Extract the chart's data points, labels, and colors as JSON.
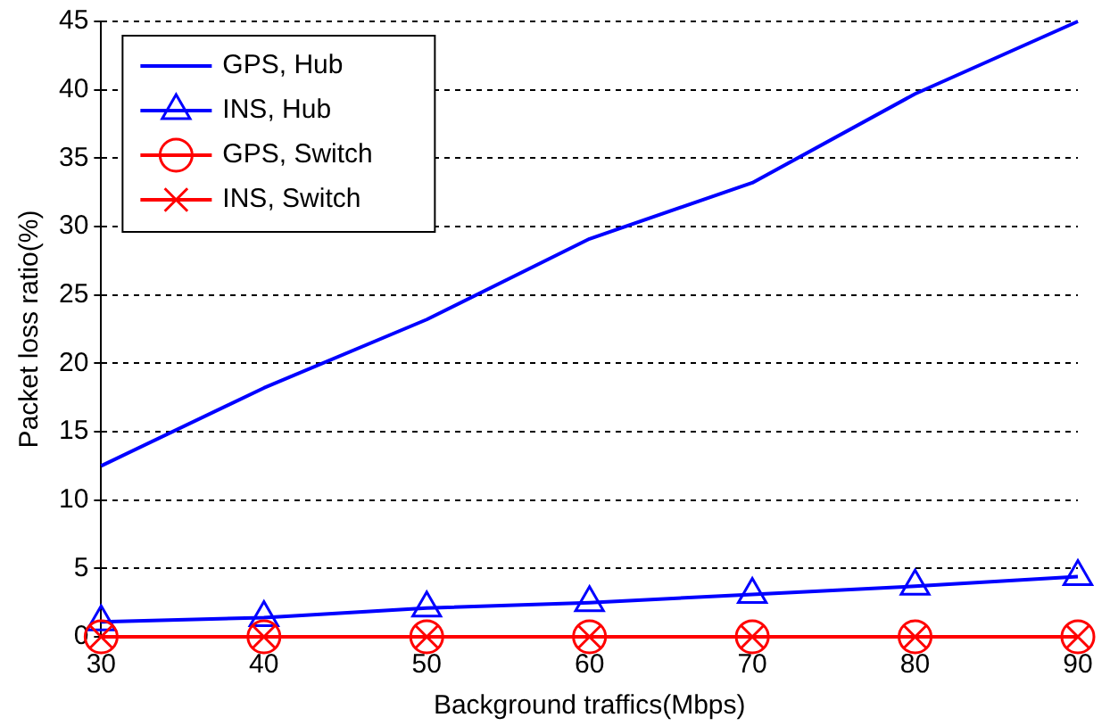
{
  "chart_data": {
    "type": "line",
    "xlabel": "Background traffics(Mbps)",
    "ylabel": "Packet loss ratio(%)",
    "x": [
      30,
      40,
      50,
      60,
      70,
      80,
      90
    ],
    "xlim": [
      30,
      90
    ],
    "xticks": [
      30,
      40,
      50,
      60,
      70,
      80,
      90
    ],
    "ylim": [
      0,
      45
    ],
    "yticks": [
      0,
      5,
      10,
      15,
      20,
      25,
      30,
      35,
      40,
      45
    ],
    "grid": "y",
    "legend": "top left",
    "series": [
      {
        "name": "GPS, Hub",
        "color": "#0000ff",
        "marker": "none",
        "values": [
          12.5,
          18.2,
          23.2,
          29.1,
          33.2,
          39.7,
          45
        ]
      },
      {
        "name": "INS, Hub",
        "color": "#0000ff",
        "marker": "triangle",
        "values": [
          1.1,
          1.4,
          2.1,
          2.5,
          3.1,
          3.7,
          4.4
        ]
      },
      {
        "name": "GPS, Switch",
        "color": "#ff0000",
        "marker": "circle",
        "values": [
          0,
          0,
          0,
          0,
          0,
          0,
          0
        ]
      },
      {
        "name": "INS, Switch",
        "color": "#ff0000",
        "marker": "cross",
        "values": [
          0,
          0,
          0,
          0,
          0,
          0,
          0
        ]
      }
    ]
  }
}
